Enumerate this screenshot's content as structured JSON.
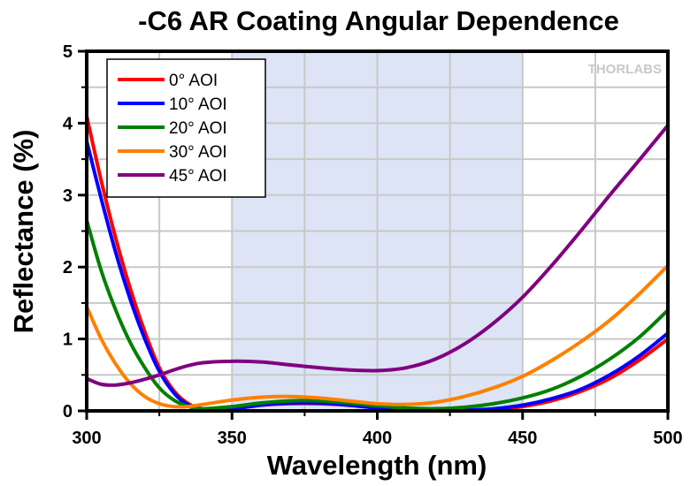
{
  "chart_data": {
    "type": "line",
    "title": "-C6 AR Coating Angular Dependence",
    "xlabel": "Wavelength (nm)",
    "ylabel": "Reflectance (%)",
    "xlim": [
      300,
      500
    ],
    "ylim": [
      0,
      5
    ],
    "xticks": [
      300,
      350,
      400,
      450,
      500
    ],
    "yticks": [
      0,
      1,
      2,
      3,
      4,
      5
    ],
    "grid": true,
    "grid_x_step": 25,
    "grid_y_step": 0.5,
    "shaded_region": {
      "x": [
        350,
        450
      ],
      "color": "#dce4f5"
    },
    "legend_position": "top-left",
    "watermark": "THORLABS",
    "series": [
      {
        "name": "0° AOI",
        "color": "#ff0000",
        "x": [
          300,
          305,
          310,
          315,
          320,
          325,
          330,
          335,
          340,
          350,
          360,
          370,
          380,
          390,
          400,
          410,
          420,
          430,
          440,
          450,
          460,
          470,
          480,
          490,
          500
        ],
        "y": [
          4.1,
          3.2,
          2.4,
          1.7,
          1.1,
          0.6,
          0.28,
          0.1,
          0.03,
          0.03,
          0.08,
          0.1,
          0.1,
          0.08,
          0.04,
          0.01,
          0.0,
          0.0,
          0.02,
          0.06,
          0.14,
          0.27,
          0.45,
          0.7,
          1.0
        ]
      },
      {
        "name": "10° AOI",
        "color": "#0000ff",
        "x": [
          300,
          305,
          310,
          315,
          320,
          325,
          330,
          335,
          340,
          350,
          360,
          370,
          380,
          390,
          400,
          410,
          420,
          430,
          440,
          450,
          460,
          470,
          480,
          490,
          500
        ],
        "y": [
          3.75,
          2.95,
          2.2,
          1.55,
          1.0,
          0.55,
          0.25,
          0.08,
          0.03,
          0.03,
          0.08,
          0.11,
          0.11,
          0.08,
          0.04,
          0.01,
          0.0,
          0.01,
          0.03,
          0.08,
          0.17,
          0.3,
          0.5,
          0.76,
          1.08
        ]
      },
      {
        "name": "20° AOI",
        "color": "#008000",
        "x": [
          300,
          305,
          310,
          315,
          320,
          325,
          330,
          335,
          340,
          350,
          360,
          370,
          380,
          390,
          400,
          410,
          420,
          430,
          440,
          450,
          460,
          470,
          480,
          490,
          500
        ],
        "y": [
          2.65,
          1.95,
          1.4,
          0.95,
          0.6,
          0.32,
          0.15,
          0.06,
          0.03,
          0.06,
          0.11,
          0.14,
          0.14,
          0.11,
          0.07,
          0.04,
          0.03,
          0.05,
          0.1,
          0.18,
          0.3,
          0.48,
          0.72,
          1.02,
          1.4
        ]
      },
      {
        "name": "30° AOI",
        "color": "#ff8000",
        "x": [
          300,
          305,
          310,
          315,
          320,
          325,
          330,
          335,
          340,
          350,
          360,
          370,
          380,
          390,
          400,
          410,
          420,
          430,
          440,
          450,
          460,
          470,
          480,
          490,
          500
        ],
        "y": [
          1.45,
          1.0,
          0.65,
          0.38,
          0.2,
          0.1,
          0.06,
          0.06,
          0.09,
          0.15,
          0.19,
          0.2,
          0.18,
          0.14,
          0.1,
          0.09,
          0.12,
          0.2,
          0.32,
          0.48,
          0.7,
          0.96,
          1.26,
          1.62,
          2.02
        ]
      },
      {
        "name": "45° AOI",
        "color": "#800080",
        "x": [
          300,
          305,
          310,
          315,
          320,
          325,
          330,
          335,
          340,
          350,
          360,
          370,
          380,
          390,
          400,
          410,
          420,
          430,
          440,
          450,
          460,
          470,
          480,
          490,
          500
        ],
        "y": [
          0.45,
          0.37,
          0.36,
          0.39,
          0.44,
          0.5,
          0.57,
          0.63,
          0.67,
          0.69,
          0.68,
          0.64,
          0.6,
          0.57,
          0.56,
          0.6,
          0.72,
          0.93,
          1.22,
          1.58,
          2.02,
          2.5,
          3.0,
          3.48,
          3.97
        ]
      }
    ]
  }
}
